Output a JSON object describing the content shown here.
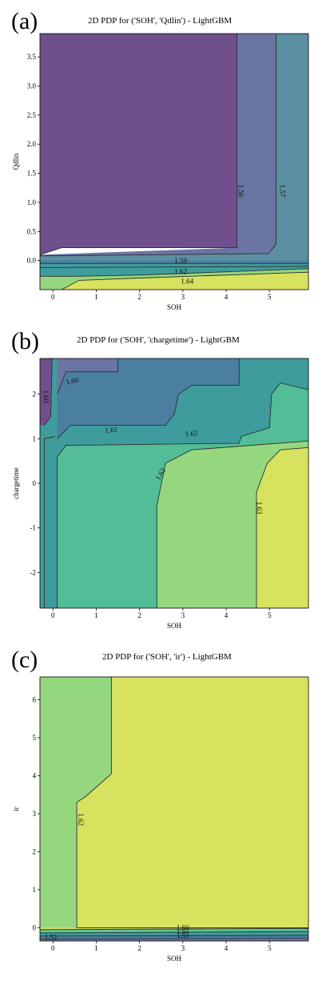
{
  "colors": {
    "purple": "#6f4f8c",
    "slate": "#6a75a3",
    "steel": "#5b8fa2",
    "blue": "#4a7fa0",
    "teal": "#3f9c9c",
    "seafoam": "#52bd96",
    "mint": "#5cc792",
    "green": "#94d77f",
    "yellow": "#d7e35f",
    "contour": "#2e2e2e"
  },
  "panels": [
    {
      "letter": "(a)",
      "title": "2D PDP for ('SOH', 'Qdlin') - LightGBM",
      "chart_data": {
        "type": "heatmap",
        "title": "2D PDP for ('SOH', 'Qdlin') - LightGBM",
        "xlabel": "SOH",
        "ylabel": "Qdlin",
        "xlim": [
          -0.3,
          5.9
        ],
        "ylim": [
          -0.5,
          3.9
        ],
        "xticks": [
          "0",
          "1",
          "2",
          "3",
          "4",
          "5"
        ],
        "yticks": [
          "0.0",
          "0.5",
          "1.0",
          "1.5",
          "2.0",
          "2.5",
          "3.0",
          "3.5"
        ],
        "contour_labels": [
          "1.56",
          "1.57",
          "1.59",
          "1.62",
          "1.64"
        ]
      }
    },
    {
      "letter": "(b)",
      "title": "2D PDP for ('SOH', 'chargetime') - LightGBM",
      "chart_data": {
        "type": "heatmap",
        "title": "2D PDP for ('SOH', 'chargetime') - LightGBM",
        "xlabel": "SOH",
        "ylabel": "chargetime",
        "xlim": [
          -0.3,
          5.9
        ],
        "ylim": [
          -2.8,
          2.8
        ],
        "xticks": [
          "0",
          "1",
          "2",
          "3",
          "4",
          "5"
        ],
        "yticks": [
          "-2",
          "-1",
          "0",
          "1",
          "2"
        ],
        "contour_labels": [
          "1.60",
          "1.60",
          "1.61",
          "1.62",
          "1.62",
          "1.63"
        ]
      }
    },
    {
      "letter": "(c)",
      "title": "2D PDP for ('SOH', 'ir') - LightGBM",
      "chart_data": {
        "type": "heatmap",
        "title": "2D PDP for ('SOH', 'ir') - LightGBM",
        "xlabel": "SOH",
        "ylabel": "ir",
        "xlim": [
          -0.3,
          5.9
        ],
        "ylim": [
          -0.35,
          6.6
        ],
        "xticks": [
          "0",
          "1",
          "2",
          "3",
          "4",
          "5"
        ],
        "yticks": [
          "0",
          "1",
          "2",
          "3",
          "4",
          "5",
          "6"
        ],
        "contour_labels": [
          "1.62",
          "1.60",
          "1.57",
          "1.55",
          "1.52"
        ]
      }
    }
  ]
}
